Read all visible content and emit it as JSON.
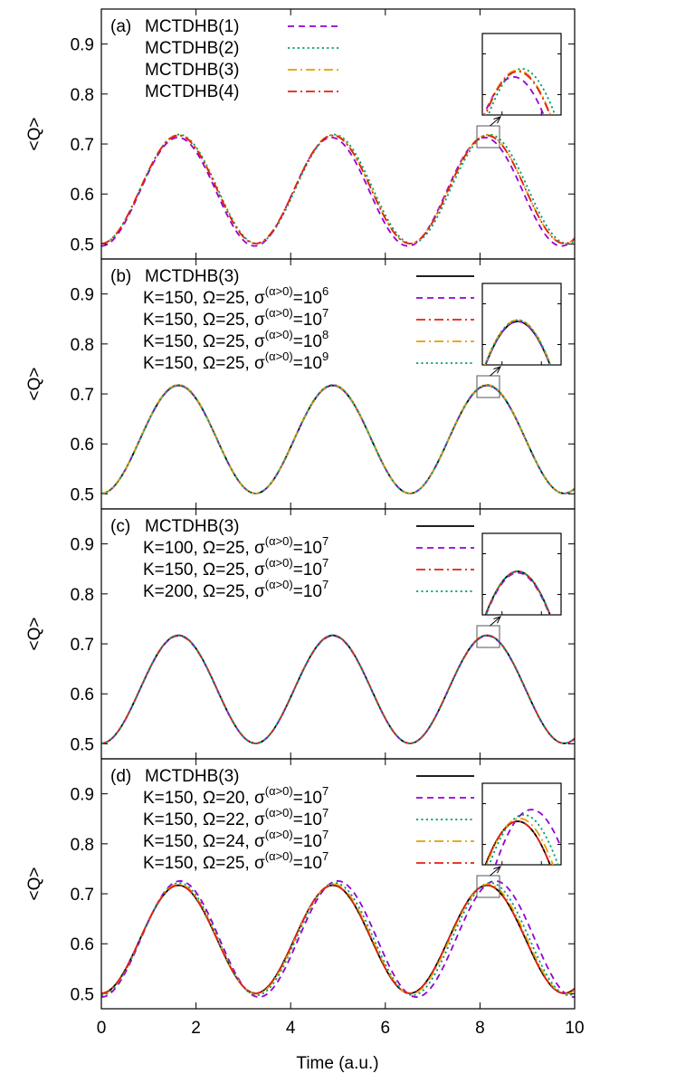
{
  "figure": {
    "xlabel": "Time (a.u.)",
    "ylabel": "<Q>",
    "x_ticks": [
      "0",
      "2",
      "4",
      "6",
      "8",
      "10"
    ],
    "y_ticks": [
      "0.5",
      "0.6",
      "0.7",
      "0.8",
      "0.9"
    ]
  },
  "series_colors": {
    "black": "#000000",
    "purple": "#9400d3",
    "teal": "#009e73",
    "orange": "#e69f00",
    "red": "#e51e10"
  },
  "chart_data": [
    {
      "type": "line",
      "panel": "(a)",
      "xlim": [
        0,
        10
      ],
      "ylim": [
        0.47,
        0.97
      ],
      "legend_placement": "top-left",
      "inset": "zoom near t=8.2, <Q>=0.72",
      "series": [
        {
          "label": "MCTDHB(1)",
          "color": "purple",
          "dash": "dashed",
          "peak": 0.713,
          "min": 0.496,
          "period": 3.24,
          "amp_mult": 1.0
        },
        {
          "label": "MCTDHB(2)",
          "color": "teal",
          "dash": "dotted",
          "peak": 0.719,
          "min": 0.501,
          "period": 3.28,
          "amp_mult": 1.0
        },
        {
          "label": "MCTDHB(3)",
          "color": "orange",
          "dash": "dash-dot",
          "peak": 0.718,
          "min": 0.501,
          "period": 3.26,
          "amp_mult": 1.0
        },
        {
          "label": "MCTDHB(4)",
          "color": "red",
          "dash": "dash-dot",
          "peak": 0.717,
          "min": 0.501,
          "period": 3.26,
          "amp_mult": 1.0
        }
      ]
    },
    {
      "type": "line",
      "panel": "(b)",
      "xlim": [
        0,
        10
      ],
      "ylim": [
        0.47,
        0.97
      ],
      "legend_placement": "top-left",
      "inset": "zoom near t=8.2, <Q>=0.72",
      "series": [
        {
          "label": "MCTDHB(3)",
          "color": "black",
          "dash": "solid",
          "peak": 0.717,
          "min": 0.501,
          "period": 3.26,
          "amp_mult": 1.0
        },
        {
          "label_pre": "K=150, Ω=25, σ",
          "label_sup": "(α>0)",
          "label_post": "=10",
          "label_exp": "6",
          "color": "purple",
          "dash": "dashed",
          "peak": 0.717,
          "min": 0.501,
          "period": 3.26,
          "amp_mult": 1.0
        },
        {
          "label_pre": "K=150, Ω=25, σ",
          "label_sup": "(α>0)",
          "label_post": "=10",
          "label_exp": "7",
          "color": "red",
          "dash": "dash-dot",
          "peak": 0.718,
          "min": 0.501,
          "period": 3.26,
          "amp_mult": 1.0
        },
        {
          "label_pre": "K=150, Ω=25, σ",
          "label_sup": "(α>0)",
          "label_post": "=10",
          "label_exp": "8",
          "color": "orange",
          "dash": "dash-dot",
          "peak": 0.718,
          "min": 0.501,
          "period": 3.26,
          "amp_mult": 1.0
        },
        {
          "label_pre": "K=150, Ω=25, σ",
          "label_sup": "(α>0)",
          "label_post": "=10",
          "label_exp": "9",
          "color": "teal",
          "dash": "dotted",
          "peak": 0.718,
          "min": 0.501,
          "period": 3.26,
          "amp_mult": 1.0
        }
      ]
    },
    {
      "type": "line",
      "panel": "(c)",
      "xlim": [
        0,
        10
      ],
      "ylim": [
        0.47,
        0.97
      ],
      "legend_placement": "top-left",
      "inset": "zoom near t=8.2, <Q>=0.72",
      "series": [
        {
          "label": "MCTDHB(3)",
          "color": "black",
          "dash": "solid",
          "peak": 0.717,
          "min": 0.501,
          "period": 3.26,
          "amp_mult": 1.0
        },
        {
          "label_pre": "K=100, Ω=25, σ",
          "label_sup": "(α>0)",
          "label_post": "=10",
          "label_exp": "7",
          "color": "purple",
          "dash": "dashed",
          "peak": 0.716,
          "min": 0.501,
          "period": 3.26,
          "amp_mult": 1.0
        },
        {
          "label_pre": "K=150, Ω=25, σ",
          "label_sup": "(α>0)",
          "label_post": "=10",
          "label_exp": "7",
          "color": "red",
          "dash": "dash-dot",
          "peak": 0.717,
          "min": 0.501,
          "period": 3.26,
          "amp_mult": 1.0
        },
        {
          "label_pre": "K=200, Ω=25, σ",
          "label_sup": "(α>0)",
          "label_post": "=10",
          "label_exp": "7",
          "color": "teal",
          "dash": "dotted",
          "peak": 0.717,
          "min": 0.501,
          "period": 3.26,
          "amp_mult": 1.0
        }
      ]
    },
    {
      "type": "line",
      "panel": "(d)",
      "xlim": [
        0,
        10
      ],
      "ylim": [
        0.47,
        0.97
      ],
      "legend_placement": "top-left",
      "inset": "zoom near t=8.2, <Q>=0.72",
      "series": [
        {
          "label": "MCTDHB(3)",
          "color": "black",
          "dash": "solid",
          "peak": 0.717,
          "min": 0.501,
          "period": 3.26,
          "amp_mult": 1.0
        },
        {
          "label_pre": "K=150, Ω=20, σ",
          "label_sup": "(α>0)",
          "label_post": "=10",
          "label_exp": "7",
          "color": "purple",
          "dash": "dashed",
          "peak": 0.718,
          "min": 0.501,
          "period": 3.33,
          "amp_mult": 1.07
        },
        {
          "label_pre": "K=150, Ω=22, σ",
          "label_sup": "(α>0)",
          "label_post": "=10",
          "label_exp": "7",
          "color": "teal",
          "dash": "dotted",
          "peak": 0.718,
          "min": 0.501,
          "period": 3.29,
          "amp_mult": 1.035
        },
        {
          "label_pre": "K=150, Ω=24, σ",
          "label_sup": "(α>0)",
          "label_post": "=10",
          "label_exp": "7",
          "color": "orange",
          "dash": "dash-dot",
          "peak": 0.718,
          "min": 0.501,
          "period": 3.27,
          "amp_mult": 1.01
        },
        {
          "label_pre": "K=150, Ω=25, σ",
          "label_sup": "(α>0)",
          "label_post": "=10",
          "label_exp": "7",
          "color": "red",
          "dash": "dash-dot",
          "peak": 0.717,
          "min": 0.501,
          "period": 3.26,
          "amp_mult": 1.0
        }
      ]
    }
  ]
}
